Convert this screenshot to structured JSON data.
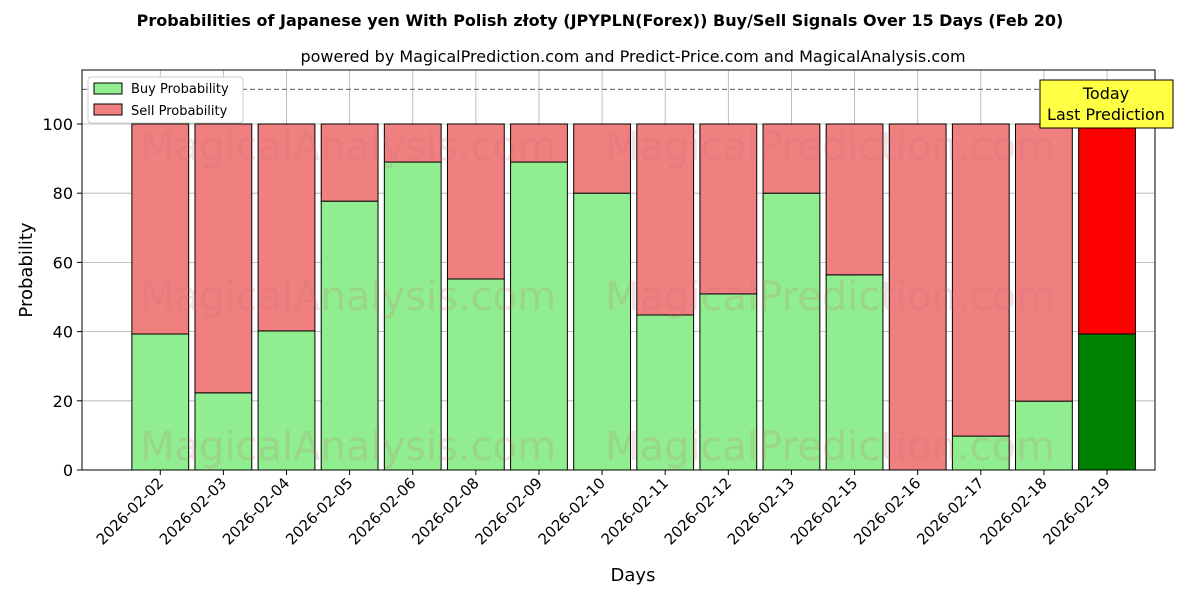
{
  "chart_data": {
    "type": "bar",
    "stacked": true,
    "title": "Probabilities of Japanese yen With Polish złoty (JPYPLN(Forex)) Buy/Sell Signals Over 15 Days (Feb 20)",
    "subtitle": "powered by MagicalPrediction.com and Predict-Price.com and MagicalAnalysis.com",
    "xlabel": "Days",
    "ylabel": "Probability",
    "ylim": [
      0,
      115.6
    ],
    "yticks": [
      0,
      20,
      40,
      60,
      80,
      100
    ],
    "categories": [
      "2026-02-02",
      "2026-02-03",
      "2026-02-04",
      "2026-02-05",
      "2026-02-06",
      "2026-02-08",
      "2026-02-09",
      "2026-02-10",
      "2026-02-11",
      "2026-02-12",
      "2026-02-13",
      "2026-02-15",
      "2026-02-16",
      "2026-02-17",
      "2026-02-18",
      "2026-02-19"
    ],
    "series": [
      {
        "name": "Buy Probability",
        "color": "#90ee90",
        "values": [
          39.3,
          22.3,
          40.2,
          77.7,
          89,
          55.2,
          89,
          80,
          44.8,
          50.9,
          80,
          56.4,
          0,
          9.8,
          19.9,
          39.3
        ]
      },
      {
        "name": "Sell Probability",
        "color": "#f08080",
        "values": [
          60.7,
          77.7,
          59.8,
          22.3,
          11,
          44.8,
          11,
          20,
          55.2,
          49.1,
          20,
          43.6,
          100,
          90.2,
          80.1,
          60.7
        ]
      }
    ],
    "highlight_colors": {
      "buy": "#008000",
      "sell": "#ff0000"
    },
    "reference_line": 110,
    "legend": "top-left",
    "annotation": [
      "Today",
      "Last Prediction"
    ],
    "watermarks": [
      "MagicalAnalysis.com",
      "MagicalPrediction.com"
    ],
    "grid": true
  }
}
